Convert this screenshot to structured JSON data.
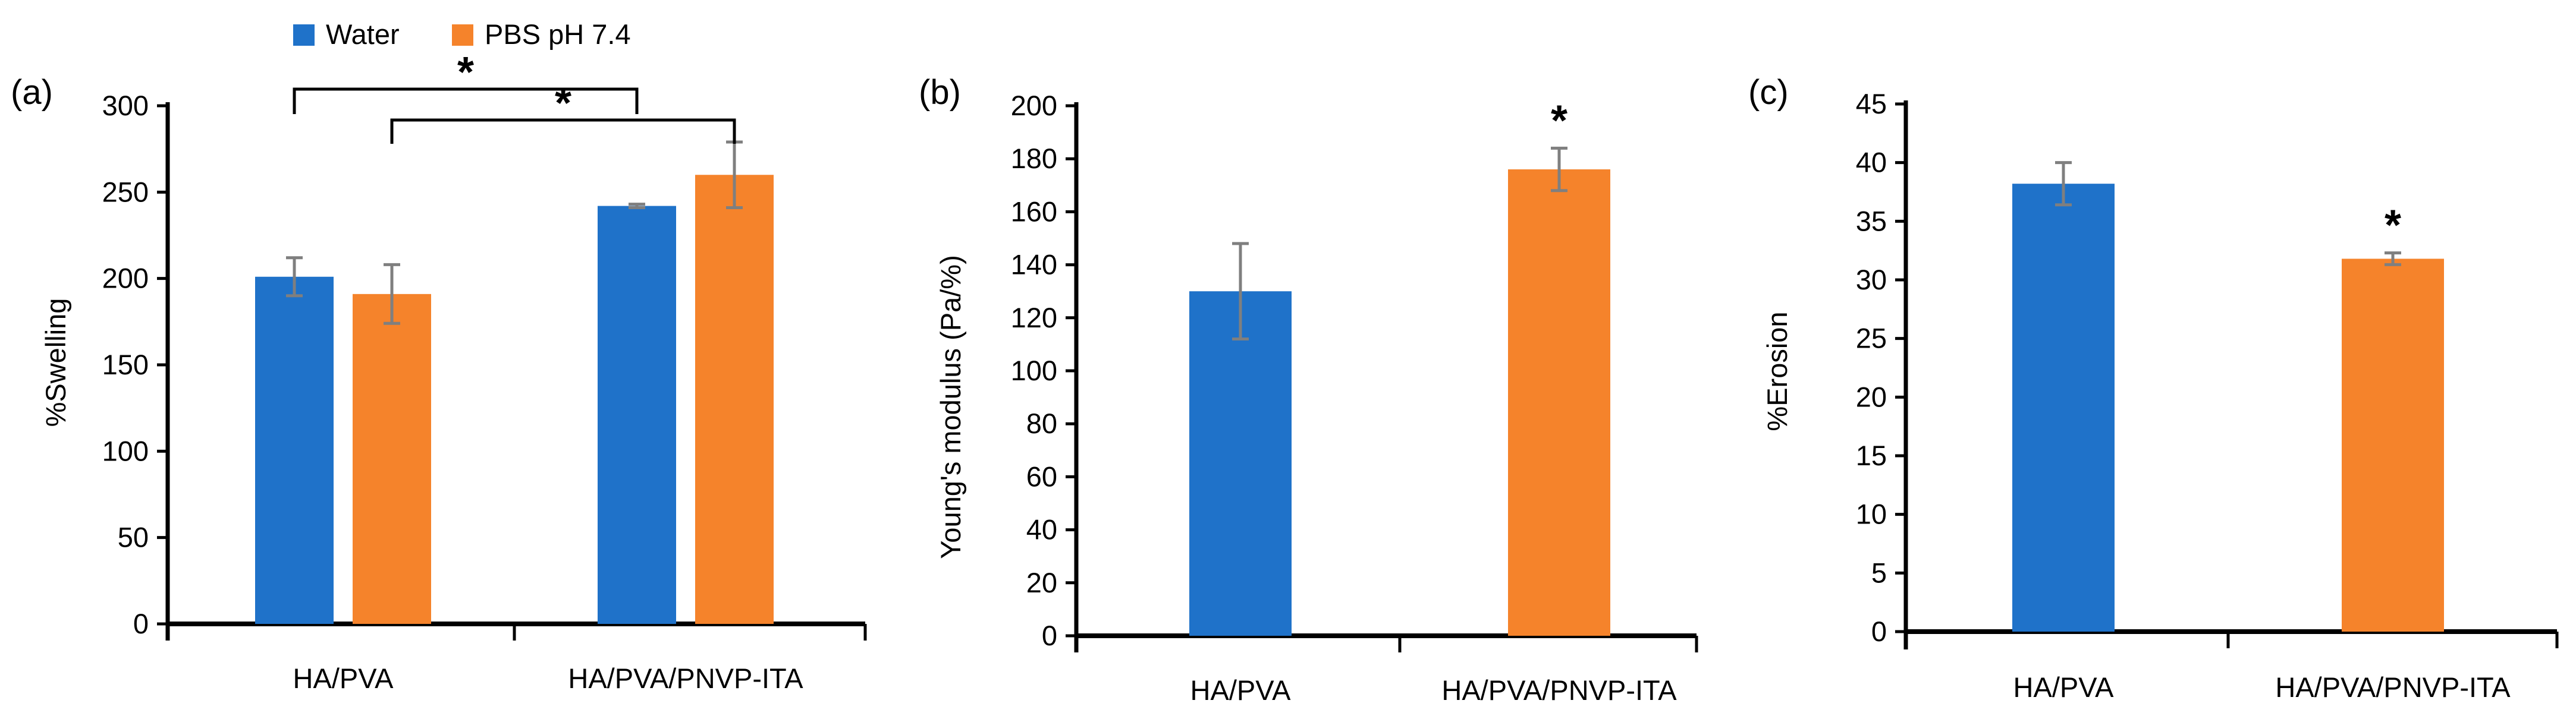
{
  "legend": [
    {
      "label": "Water",
      "color": "#1f72c9"
    },
    {
      "label": "PBS pH 7.4",
      "color": "#f5832b"
    }
  ],
  "chart_data": [
    {
      "type": "bar",
      "panel_label": "(a)",
      "title": "",
      "xlabel": "",
      "ylabel": "%Swelling",
      "ylim": [
        0,
        300
      ],
      "yticks": [
        0,
        50,
        100,
        150,
        200,
        250,
        300
      ],
      "categories": [
        "HA/PVA",
        "HA/PVA/PNVP-ITA"
      ],
      "series": [
        {
          "name": "Water",
          "color": "#1f72c9",
          "values": [
            201,
            242
          ],
          "errors": [
            11,
            1
          ]
        },
        {
          "name": "PBS pH 7.4",
          "color": "#f5832b",
          "values": [
            191,
            260
          ],
          "errors": [
            17,
            19
          ]
        }
      ],
      "significance": [
        {
          "label": "*",
          "between": "HA/PVA Water vs HA/PVA/PNVP-ITA Water"
        },
        {
          "label": "*",
          "between": "HA/PVA PBS pH 7.4 vs HA/PVA/PNVP-ITA PBS pH 7.4"
        }
      ]
    },
    {
      "type": "bar",
      "panel_label": "(b)",
      "title": "",
      "xlabel": "",
      "ylabel": "Young's modulus (Pa/%)",
      "ylim": [
        0,
        200
      ],
      "yticks": [
        0,
        20,
        40,
        60,
        80,
        100,
        120,
        140,
        160,
        180,
        200
      ],
      "categories": [
        "HA/PVA",
        "HA/PVA/PNVP-ITA"
      ],
      "values": [
        130,
        176
      ],
      "errors": [
        18,
        8
      ],
      "colors": [
        "#1f72c9",
        "#f5832b"
      ],
      "significance_label": "*"
    },
    {
      "type": "bar",
      "panel_label": "(c)",
      "title": "",
      "xlabel": "",
      "ylabel": "%Erosion",
      "ylim": [
        0,
        45
      ],
      "yticks": [
        0,
        5,
        10,
        15,
        20,
        25,
        30,
        35,
        40,
        45
      ],
      "categories": [
        "HA/PVA",
        "HA/PVA/PNVP-ITA"
      ],
      "values": [
        38.2,
        31.8
      ],
      "errors": [
        1.8,
        0.5
      ],
      "colors": [
        "#1f72c9",
        "#f5832b"
      ],
      "significance_label": "*"
    }
  ]
}
